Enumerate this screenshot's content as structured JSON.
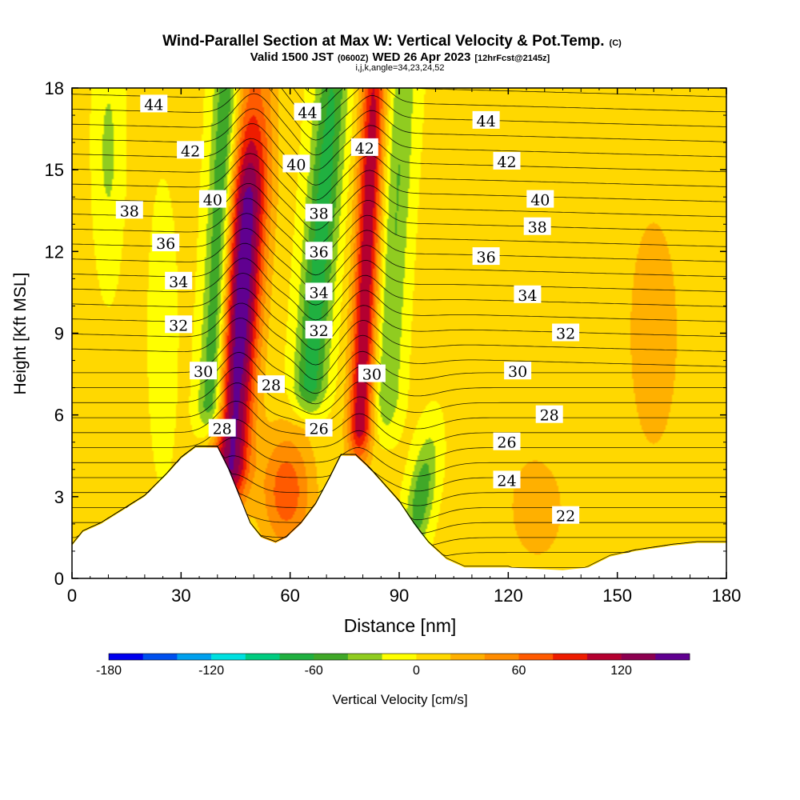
{
  "chart_data": {
    "type": "contour",
    "title": "Wind-Parallel Section at Max W: Vertical Velocity & Pot.Temp.",
    "title_unit": "(C)",
    "subtitle_main": "Valid 1500 JST",
    "subtitle_utc": "(0600Z)",
    "subtitle_date": "WED 26 Apr 2023",
    "subtitle_fcst": "[12hrFcst@2145z]",
    "subtitle2": "i,j,k,angle=34,23,24,52",
    "xlabel": "Distance [nm]",
    "ylabel": "Height [Kft MSL]",
    "xlim": [
      0,
      180
    ],
    "ylim": [
      0,
      18
    ],
    "xticks": [
      "0",
      "30",
      "60",
      "90",
      "120",
      "150",
      "180"
    ],
    "yticks": [
      "0",
      "3",
      "6",
      "9",
      "12",
      "15",
      "18"
    ],
    "colorbar": {
      "label": "Vertical Velocity [cm/s]",
      "min": -180,
      "max": 150,
      "step": 20,
      "tick_labels": [
        "-180",
        "-120",
        "-60",
        "0",
        "60",
        "120"
      ],
      "colors": [
        "#0000ee",
        "#0050ee",
        "#00a0ee",
        "#00e0e0",
        "#00cc80",
        "#20b040",
        "#40a828",
        "#90cc20",
        "#ffff00",
        "#ffd800",
        "#ffb000",
        "#ff8c00",
        "#ff5a00",
        "#ee1c00",
        "#b40030",
        "#8c0050",
        "#600090"
      ]
    },
    "terrain": [
      [
        0,
        1.2
      ],
      [
        3,
        1.7
      ],
      [
        8,
        2.0
      ],
      [
        14,
        2.5
      ],
      [
        20,
        3.0
      ],
      [
        26,
        3.8
      ],
      [
        30,
        4.4
      ],
      [
        34,
        4.8
      ],
      [
        40,
        4.8
      ],
      [
        43,
        4.0
      ],
      [
        46,
        3.0
      ],
      [
        49,
        2.0
      ],
      [
        52,
        1.5
      ],
      [
        56,
        1.3
      ],
      [
        59,
        1.5
      ],
      [
        63,
        2.0
      ],
      [
        67,
        2.7
      ],
      [
        71,
        3.7
      ],
      [
        74,
        4.5
      ],
      [
        78,
        4.5
      ],
      [
        82,
        4.0
      ],
      [
        86,
        3.4
      ],
      [
        90,
        2.8
      ],
      [
        94,
        2.0
      ],
      [
        98,
        1.3
      ],
      [
        103,
        0.7
      ],
      [
        108,
        0.4
      ],
      [
        120,
        0.4
      ],
      [
        135,
        0.3
      ],
      [
        142,
        0.4
      ],
      [
        148,
        0.8
      ],
      [
        155,
        1.0
      ],
      [
        165,
        1.2
      ],
      [
        172,
        1.3
      ],
      [
        181,
        1.3
      ]
    ],
    "w_features": [
      {
        "x": 47,
        "y": 9,
        "value": 140
      },
      {
        "x": 41,
        "y": 8,
        "value": -70
      },
      {
        "x": 69,
        "y": 9,
        "value": -70
      },
      {
        "x": 81,
        "y": 9,
        "value": 110
      },
      {
        "x": 59,
        "y": 3,
        "value": 60
      },
      {
        "x": 96,
        "y": 3,
        "value": -50
      },
      {
        "x": 160,
        "y": 9,
        "value": 25
      }
    ],
    "theta_labels": [
      {
        "text": "44",
        "x": 22.5,
        "y": 17.4
      },
      {
        "text": "44",
        "x": 64.8,
        "y": 17.1
      },
      {
        "text": "44",
        "x": 113.9,
        "y": 16.8
      },
      {
        "text": "42",
        "x": 32.6,
        "y": 15.7
      },
      {
        "text": "42",
        "x": 80.5,
        "y": 15.8
      },
      {
        "text": "42",
        "x": 119.6,
        "y": 15.3
      },
      {
        "text": "40",
        "x": 38.7,
        "y": 13.9
      },
      {
        "text": "40",
        "x": 61.7,
        "y": 15.2
      },
      {
        "text": "40",
        "x": 128.8,
        "y": 13.9
      },
      {
        "text": "38",
        "x": 15.8,
        "y": 13.5
      },
      {
        "text": "38",
        "x": 67.9,
        "y": 13.4
      },
      {
        "text": "38",
        "x": 128.0,
        "y": 12.9
      },
      {
        "text": "36",
        "x": 25.8,
        "y": 12.3
      },
      {
        "text": "36",
        "x": 67.9,
        "y": 12.0
      },
      {
        "text": "36",
        "x": 113.9,
        "y": 11.8
      },
      {
        "text": "34",
        "x": 29.3,
        "y": 10.9
      },
      {
        "text": "34",
        "x": 67.9,
        "y": 10.5
      },
      {
        "text": "34",
        "x": 125.3,
        "y": 10.4
      },
      {
        "text": "32",
        "x": 29.3,
        "y": 9.3
      },
      {
        "text": "32",
        "x": 67.9,
        "y": 9.1
      },
      {
        "text": "32",
        "x": 135.8,
        "y": 9.0
      },
      {
        "text": "30",
        "x": 36.1,
        "y": 7.6
      },
      {
        "text": "30",
        "x": 82.5,
        "y": 7.5
      },
      {
        "text": "30",
        "x": 122.6,
        "y": 7.6
      },
      {
        "text": "28",
        "x": 54.8,
        "y": 7.1
      },
      {
        "text": "28",
        "x": 41.3,
        "y": 5.5
      },
      {
        "text": "28",
        "x": 131.3,
        "y": 6.0
      },
      {
        "text": "26",
        "x": 67.9,
        "y": 5.5
      },
      {
        "text": "26",
        "x": 119.6,
        "y": 5.0
      },
      {
        "text": "24",
        "x": 119.6,
        "y": 3.6
      },
      {
        "text": "22",
        "x": 135.8,
        "y": 2.3
      }
    ]
  }
}
